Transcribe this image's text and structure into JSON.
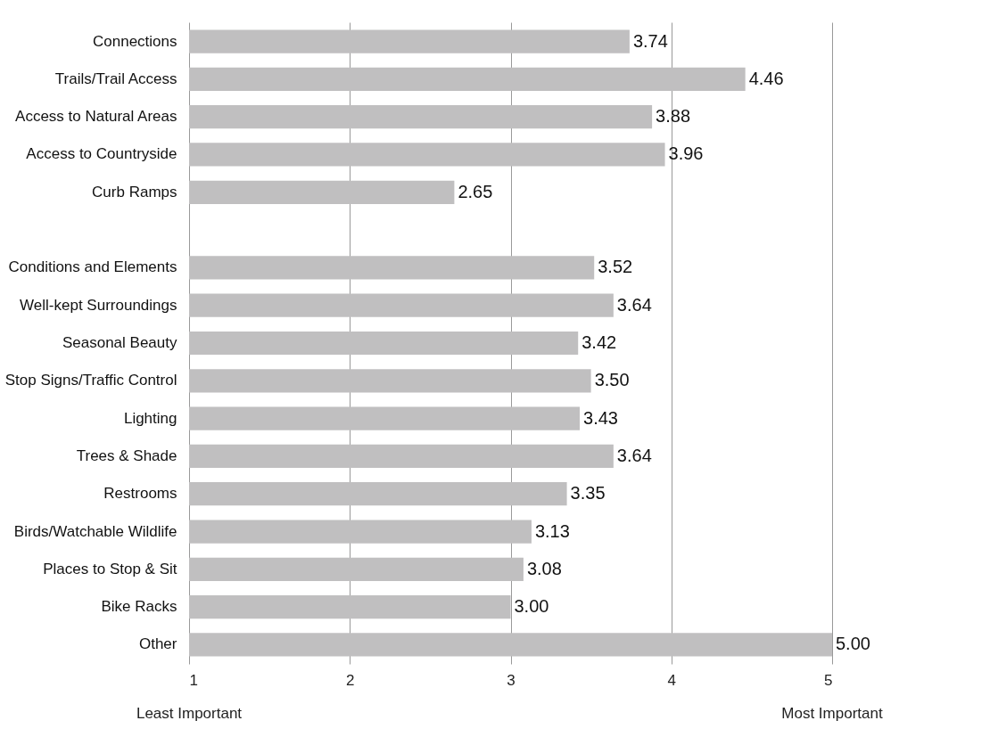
{
  "chart_data": {
    "type": "bar",
    "orientation": "horizontal",
    "categories": [
      "Connections",
      "Trails/Trail Access",
      "Access to Natural Areas",
      "Access to Countryside",
      "Curb Ramps",
      null,
      "Conditions and Elements",
      "Well-kept Surroundings",
      "Seasonal Beauty",
      "Stop Signs/Traffic Control",
      "Lighting",
      "Trees & Shade",
      "Restrooms",
      "Birds/Watchable Wildlife",
      "Places to Stop & Sit",
      "Bike Racks",
      "Other"
    ],
    "values": [
      3.74,
      4.46,
      3.88,
      3.96,
      2.65,
      null,
      3.52,
      3.64,
      3.42,
      3.5,
      3.43,
      3.64,
      3.35,
      3.13,
      3.08,
      3.0,
      5.0
    ],
    "color": "#c0bfc0",
    "xlim": [
      1,
      5
    ],
    "xticks": [
      1,
      2,
      3,
      4,
      5
    ],
    "grid": "x",
    "value_labels": [
      "3.74",
      "4.46",
      "3.88",
      "3.96",
      "2.65",
      null,
      "3.52",
      "3.64",
      "3.42",
      "3.50",
      "3.43",
      "3.64",
      "3.35",
      "3.13",
      "3.08",
      "3.00",
      "5.00"
    ],
    "annotations": [
      "Least Important",
      "Most Important"
    ]
  }
}
